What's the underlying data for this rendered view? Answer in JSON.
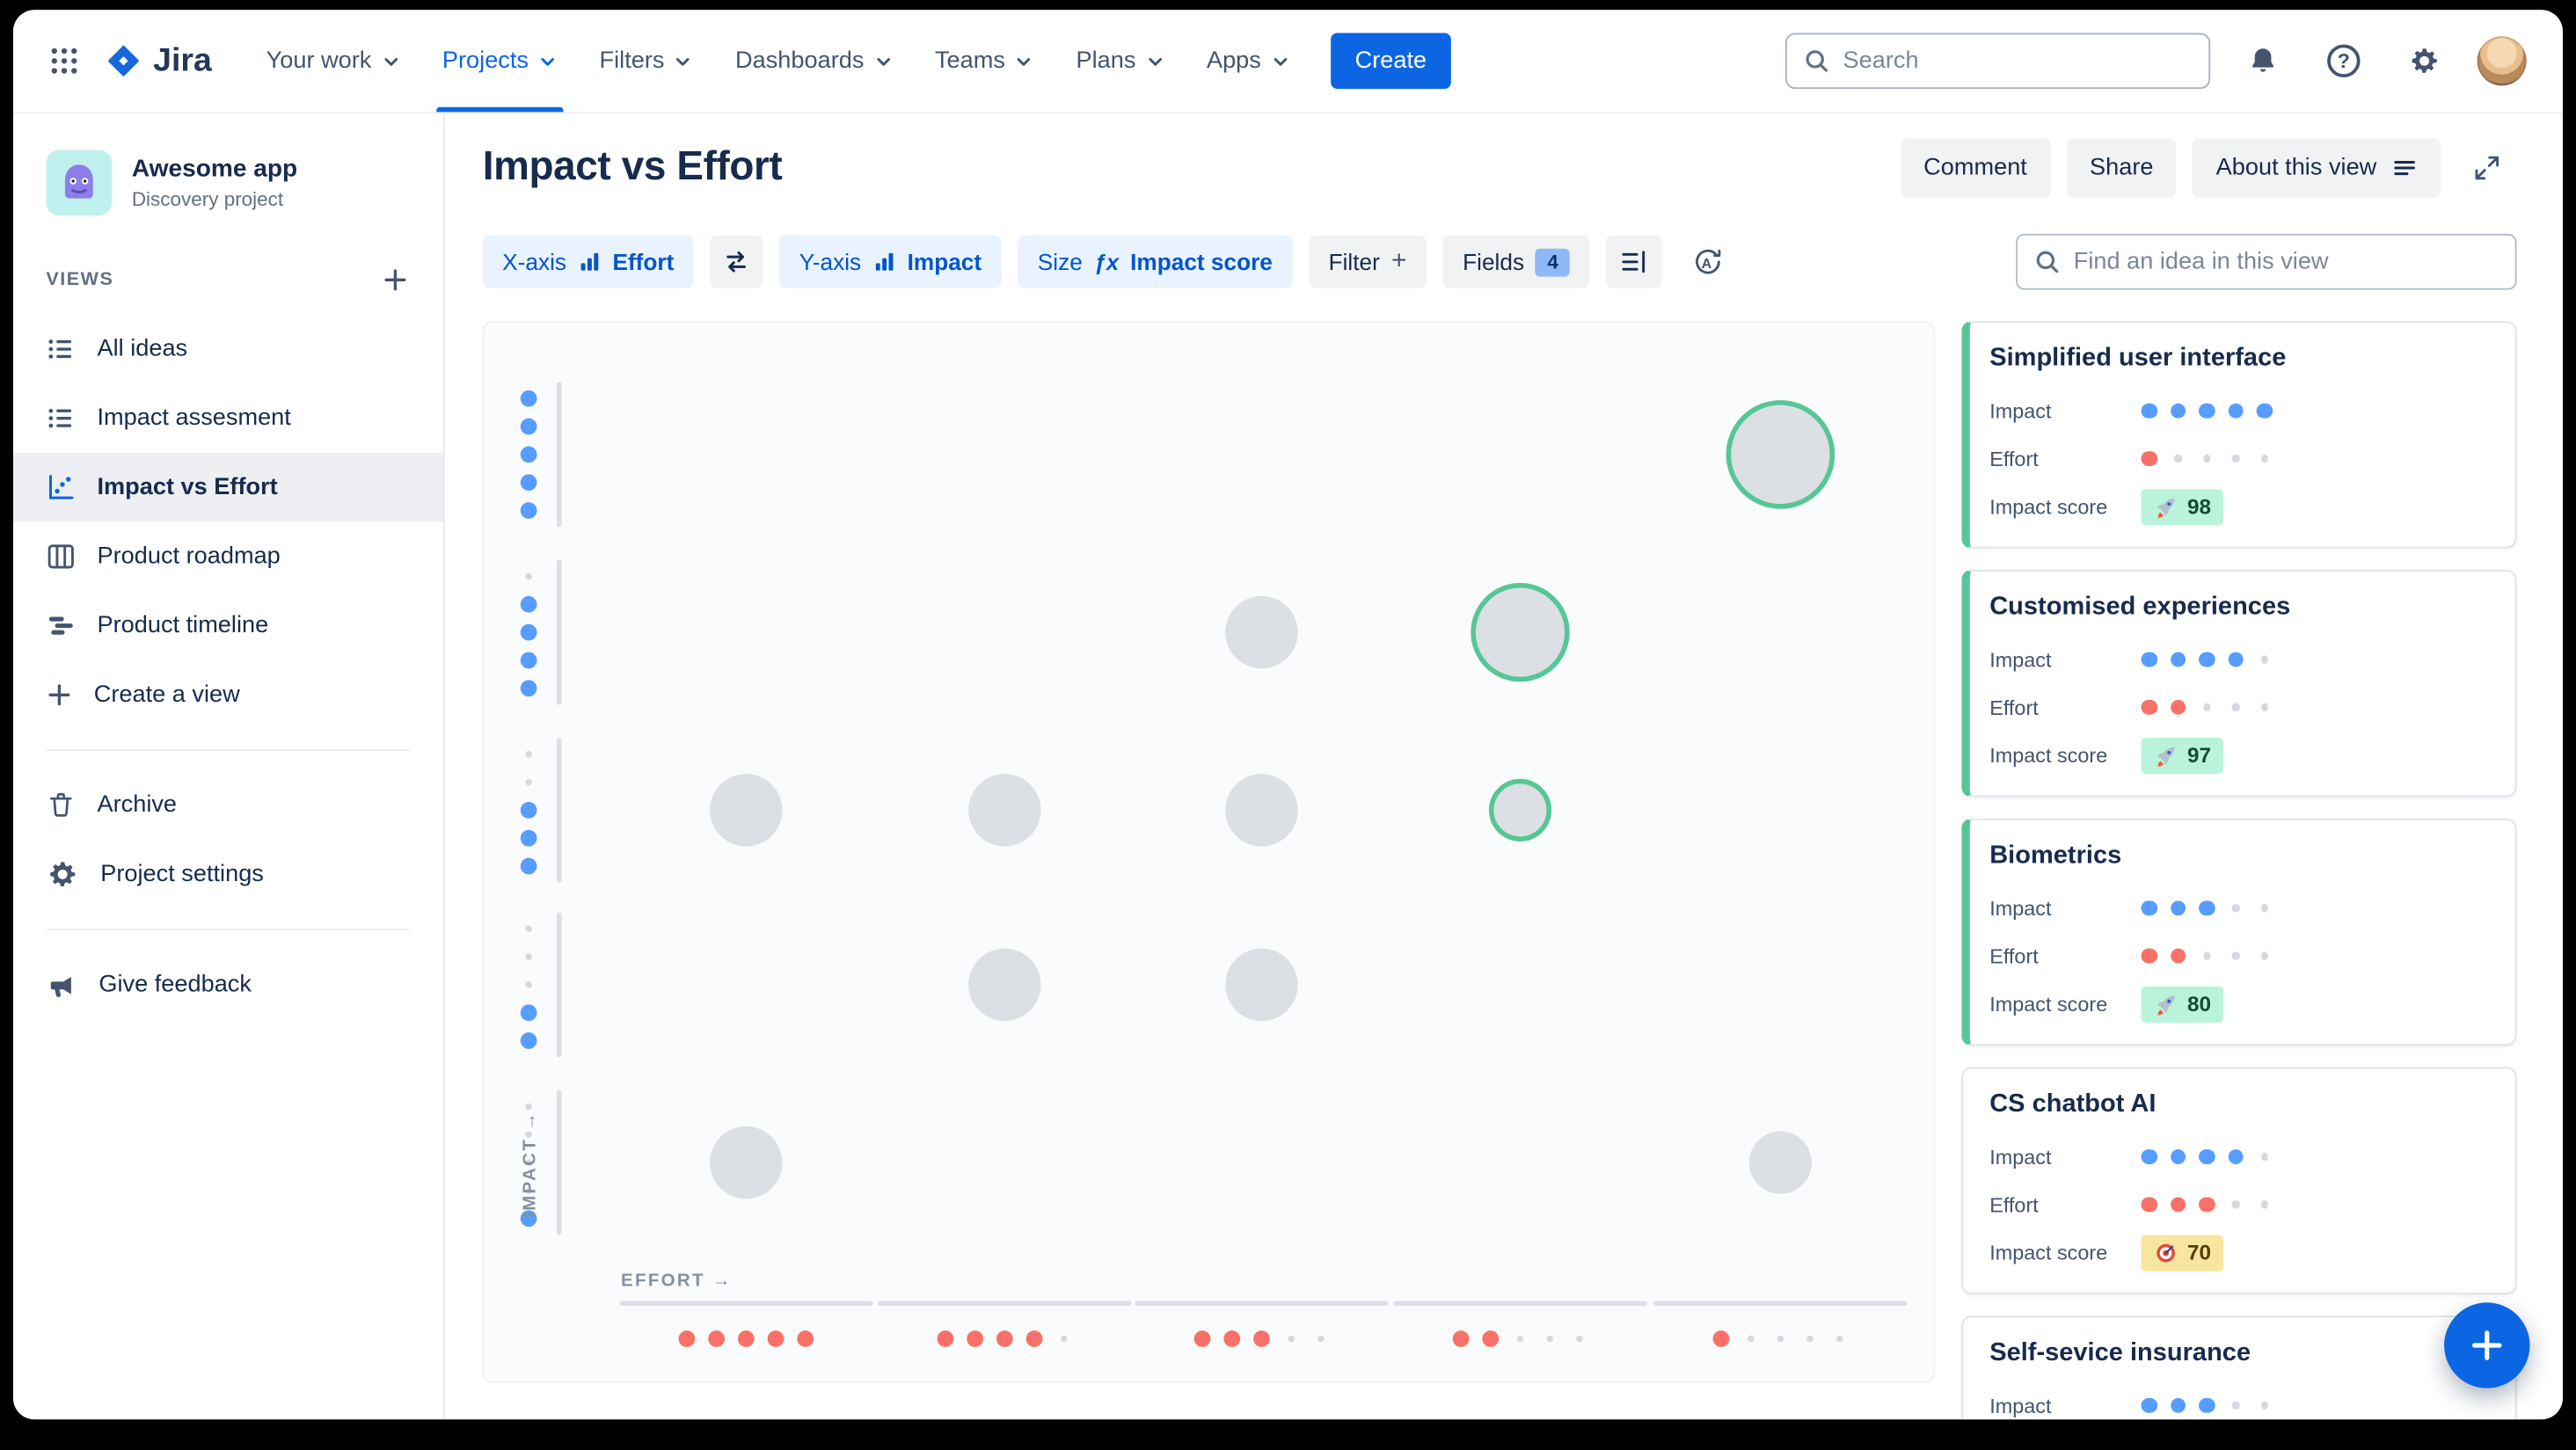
{
  "brand": {
    "name": "Jira"
  },
  "nav": {
    "items": [
      {
        "label": "Your work",
        "active": false
      },
      {
        "label": "Projects",
        "active": true
      },
      {
        "label": "Filters",
        "active": false
      },
      {
        "label": "Dashboards",
        "active": false
      },
      {
        "label": "Teams",
        "active": false
      },
      {
        "label": "Plans",
        "active": false
      },
      {
        "label": "Apps",
        "active": false
      }
    ],
    "create_label": "Create",
    "search_placeholder": "Search"
  },
  "sidebar": {
    "project_name": "Awesome app",
    "project_type": "Discovery project",
    "views_label": "VIEWS",
    "view_items": [
      {
        "label": "All ideas",
        "icon": "list-icon",
        "selected": false
      },
      {
        "label": "Impact assesment",
        "icon": "list-icon",
        "selected": false
      },
      {
        "label": "Impact vs Effort",
        "icon": "scatter-chart-icon",
        "selected": true
      },
      {
        "label": "Product roadmap",
        "icon": "board-icon",
        "selected": false
      },
      {
        "label": "Product timeline",
        "icon": "timeline-icon",
        "selected": false
      },
      {
        "label": "Create a view",
        "icon": "plus-icon",
        "selected": false
      }
    ],
    "secondary_items": [
      {
        "label": "Archive",
        "icon": "trash-icon"
      },
      {
        "label": "Project settings",
        "icon": "gear-icon"
      }
    ],
    "feedback_label": "Give feedback"
  },
  "header": {
    "title": "Impact vs Effort",
    "comment_label": "Comment",
    "share_label": "Share",
    "about_label": "About this view"
  },
  "toolbar": {
    "x_axis_label": "X-axis",
    "x_axis_value": "Effort",
    "y_axis_label": "Y-axis",
    "y_axis_value": "Impact",
    "size_label": "Size",
    "size_value": "Impact score",
    "filter_label": "Filter",
    "fields_label": "Fields",
    "fields_count": "4",
    "find_placeholder": "Find an idea in this view"
  },
  "chart_data": {
    "type": "scatter",
    "xlabel": "EFFORT",
    "ylabel": "IMPACT",
    "x_axis": {
      "field": "Effort",
      "range": [
        1,
        5
      ],
      "tick_dot_counts": [
        5,
        4,
        3,
        2,
        1
      ]
    },
    "y_axis": {
      "field": "Impact",
      "range": [
        1,
        5
      ],
      "tick_dot_counts": [
        5,
        4,
        3,
        2,
        1
      ]
    },
    "bubble_size_field": "Impact score",
    "points": [
      {
        "effort": 5,
        "impact": 5,
        "size": "xl",
        "highlighted": true
      },
      {
        "effort": 4,
        "impact": 4,
        "size": "l",
        "highlighted": true
      },
      {
        "effort": 3,
        "impact": 4,
        "size": "m",
        "highlighted": false
      },
      {
        "effort": 1,
        "impact": 3,
        "size": "m",
        "highlighted": false
      },
      {
        "effort": 2,
        "impact": 3,
        "size": "m",
        "highlighted": false
      },
      {
        "effort": 3,
        "impact": 3,
        "size": "m",
        "highlighted": false
      },
      {
        "effort": 4,
        "impact": 3,
        "size": "s",
        "highlighted": true
      },
      {
        "effort": 2,
        "impact": 2,
        "size": "m",
        "highlighted": false
      },
      {
        "effort": 3,
        "impact": 2,
        "size": "m",
        "highlighted": false
      },
      {
        "effort": 1,
        "impact": 1,
        "size": "m",
        "highlighted": false
      },
      {
        "effort": 5,
        "impact": 1,
        "size": "s",
        "highlighted": false
      }
    ]
  },
  "idea_panel": {
    "row_labels": {
      "impact": "Impact",
      "effort": "Effort",
      "score": "Impact score"
    },
    "cards": [
      {
        "title": "Simplified user interface",
        "impact": 5,
        "effort": 1,
        "score": 98,
        "score_icon": "rocket-icon",
        "score_style": "green",
        "accent": true
      },
      {
        "title": "Customised experiences",
        "impact": 4,
        "effort": 2,
        "score": 97,
        "score_icon": "rocket-icon",
        "score_style": "green",
        "accent": true
      },
      {
        "title": "Biometrics",
        "impact": 3,
        "effort": 2,
        "score": 80,
        "score_icon": "rocket-icon",
        "score_style": "green",
        "accent": true
      },
      {
        "title": "CS chatbot AI",
        "impact": 4,
        "effort": 3,
        "score": 70,
        "score_icon": "target-icon",
        "score_style": "yellow",
        "accent": false
      },
      {
        "title": "Self-sevice insurance",
        "impact": 3,
        "accent": false
      }
    ]
  },
  "colors": {
    "accent_blue": "#0C66E4",
    "impact_dot": "#579DFF",
    "effort_dot": "#F87168",
    "highlight_ring": "#55C795",
    "bubble_fill": "#DCDFE4",
    "badge_green_bg": "#BAF3DB",
    "badge_yellow_bg": "#F8E6A0"
  }
}
